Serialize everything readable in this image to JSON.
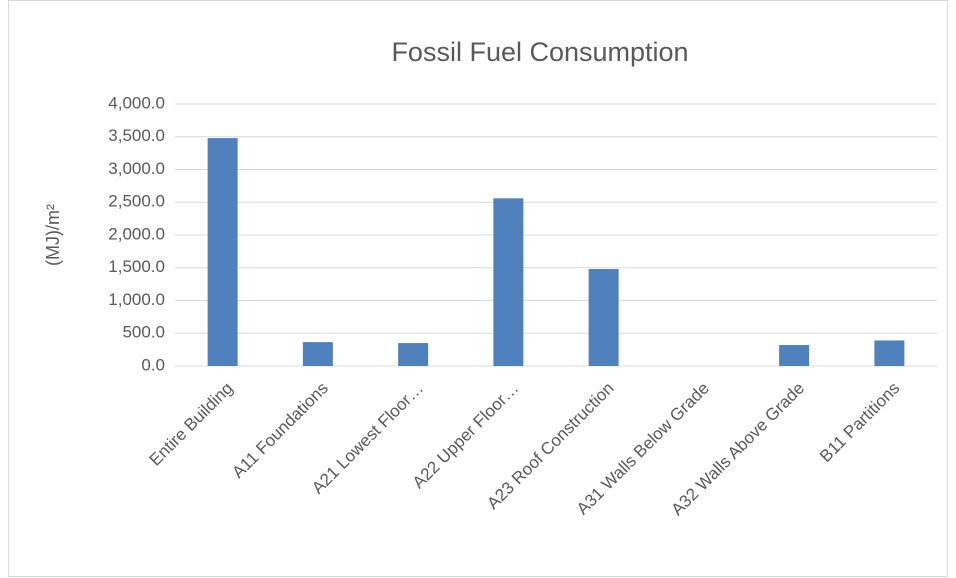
{
  "chart_data": {
    "type": "bar",
    "title": "Fossil Fuel Consumption",
    "y_label": "(MJ)/m²",
    "categories": [
      "Entire Building",
      "A11 Foundations",
      "A21 Lowest Floor…",
      "A22 Upper Floor…",
      "A23 Roof Construction",
      "A31 Walls Below Grade",
      "A32 Walls Above Grade",
      "B11 Partitions"
    ],
    "values": [
      3480,
      365,
      350,
      2560,
      1480,
      0,
      320,
      390
    ],
    "color": "#4f81bd",
    "ylim": [
      0,
      4000
    ],
    "yticks": [
      {
        "value": 0,
        "label": "0.0"
      },
      {
        "value": 500,
        "label": "500.0"
      },
      {
        "value": 1000,
        "label": "1,000.0"
      },
      {
        "value": 1500,
        "label": "1,500.0"
      },
      {
        "value": 2000,
        "label": "2,000.0"
      },
      {
        "value": 2500,
        "label": "2,500.0"
      },
      {
        "value": 3000,
        "label": "3,000.0"
      },
      {
        "value": 3500,
        "label": "3,500.0"
      },
      {
        "value": 4000,
        "label": "4,000.0"
      }
    ],
    "grid": true
  }
}
